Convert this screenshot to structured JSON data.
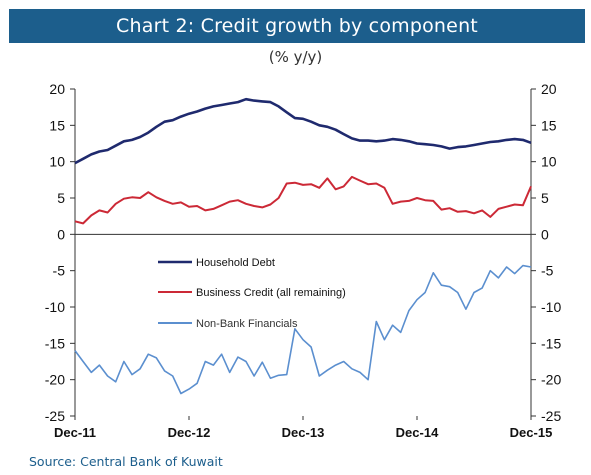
{
  "chart_data": {
    "type": "line",
    "title": "Chart 2: Credit growth by component",
    "subtitle": "(% y/y)",
    "source": "Source: Central Bank of Kuwait",
    "ylim": [
      -25,
      20
    ],
    "yticks": [
      20,
      15,
      10,
      5,
      0,
      -5,
      -10,
      -15,
      -20,
      -25
    ],
    "ytick_labels": [
      "20",
      "15",
      "10",
      "5",
      "0",
      "-5",
      "-10",
      "-15",
      "-20",
      "-25"
    ],
    "xticks": [
      "Dec-11",
      "Dec-12",
      "Dec-13",
      "Dec-14",
      "Dec-15"
    ],
    "x_start": "Dec-11",
    "x_end": "Dec-15",
    "grid": false,
    "zero_line": true,
    "legend": "inside-center-left",
    "colors": {
      "title_bar": "#1c5e8c",
      "household": "#1f2a6e",
      "business": "#cc2936",
      "nonbank": "#5b8fcf"
    },
    "series": [
      {
        "name": "Household Debt",
        "color": "#1f2a6e",
        "values": [
          9.8,
          10.4,
          11.0,
          11.4,
          11.6,
          12.2,
          12.8,
          13.0,
          13.4,
          14.0,
          14.8,
          15.5,
          15.7,
          16.2,
          16.6,
          16.9,
          17.3,
          17.6,
          17.8,
          18.0,
          18.2,
          18.6,
          18.4,
          18.3,
          18.2,
          17.6,
          16.8,
          16.0,
          15.9,
          15.5,
          15.0,
          14.8,
          14.4,
          13.8,
          13.2,
          12.9,
          12.9,
          12.8,
          12.9,
          13.1,
          13.0,
          12.8,
          12.5,
          12.4,
          12.3,
          12.1,
          11.8,
          12.0,
          12.1,
          12.3,
          12.5,
          12.7,
          12.8,
          13.0,
          13.1,
          13.0,
          12.6
        ]
      },
      {
        "name": "Business Credit (all remaining)",
        "color": "#cc2936",
        "values": [
          1.8,
          1.5,
          2.6,
          3.3,
          3.0,
          4.2,
          4.9,
          5.1,
          5.0,
          5.8,
          5.1,
          4.6,
          4.2,
          4.4,
          3.8,
          3.9,
          3.3,
          3.5,
          4.0,
          4.5,
          4.7,
          4.2,
          3.9,
          3.7,
          4.1,
          5.0,
          7.0,
          7.1,
          6.8,
          6.9,
          6.4,
          7.7,
          6.2,
          6.6,
          7.9,
          7.4,
          6.9,
          7.0,
          6.4,
          4.2,
          4.5,
          4.6,
          5.0,
          4.7,
          4.6,
          3.4,
          3.6,
          3.1,
          3.2,
          2.9,
          3.3,
          2.4,
          3.5,
          3.8,
          4.1,
          4.0,
          6.6
        ]
      },
      {
        "name": "Non-Bank Financials",
        "color": "#5b8fcf",
        "values": [
          -16.0,
          -17.5,
          -19.0,
          -18.0,
          -19.5,
          -20.3,
          -17.5,
          -19.3,
          -18.5,
          -16.5,
          -17.0,
          -18.8,
          -19.5,
          -21.9,
          -21.3,
          -20.5,
          -17.5,
          -18.0,
          -16.5,
          -19.0,
          -16.9,
          -17.5,
          -19.5,
          -17.6,
          -19.8,
          -19.4,
          -19.3,
          -13.0,
          -14.5,
          -15.5,
          -19.5,
          -18.7,
          -18.0,
          -17.5,
          -18.5,
          -19.0,
          -20.0,
          -12.0,
          -14.5,
          -12.5,
          -13.5,
          -10.5,
          -9.0,
          -8.0,
          -5.3,
          -7.0,
          -7.2,
          -8.0,
          -10.3,
          -8.0,
          -7.4,
          -5.0,
          -6.0,
          -4.5,
          -5.4,
          -4.3,
          -4.5
        ]
      }
    ]
  }
}
